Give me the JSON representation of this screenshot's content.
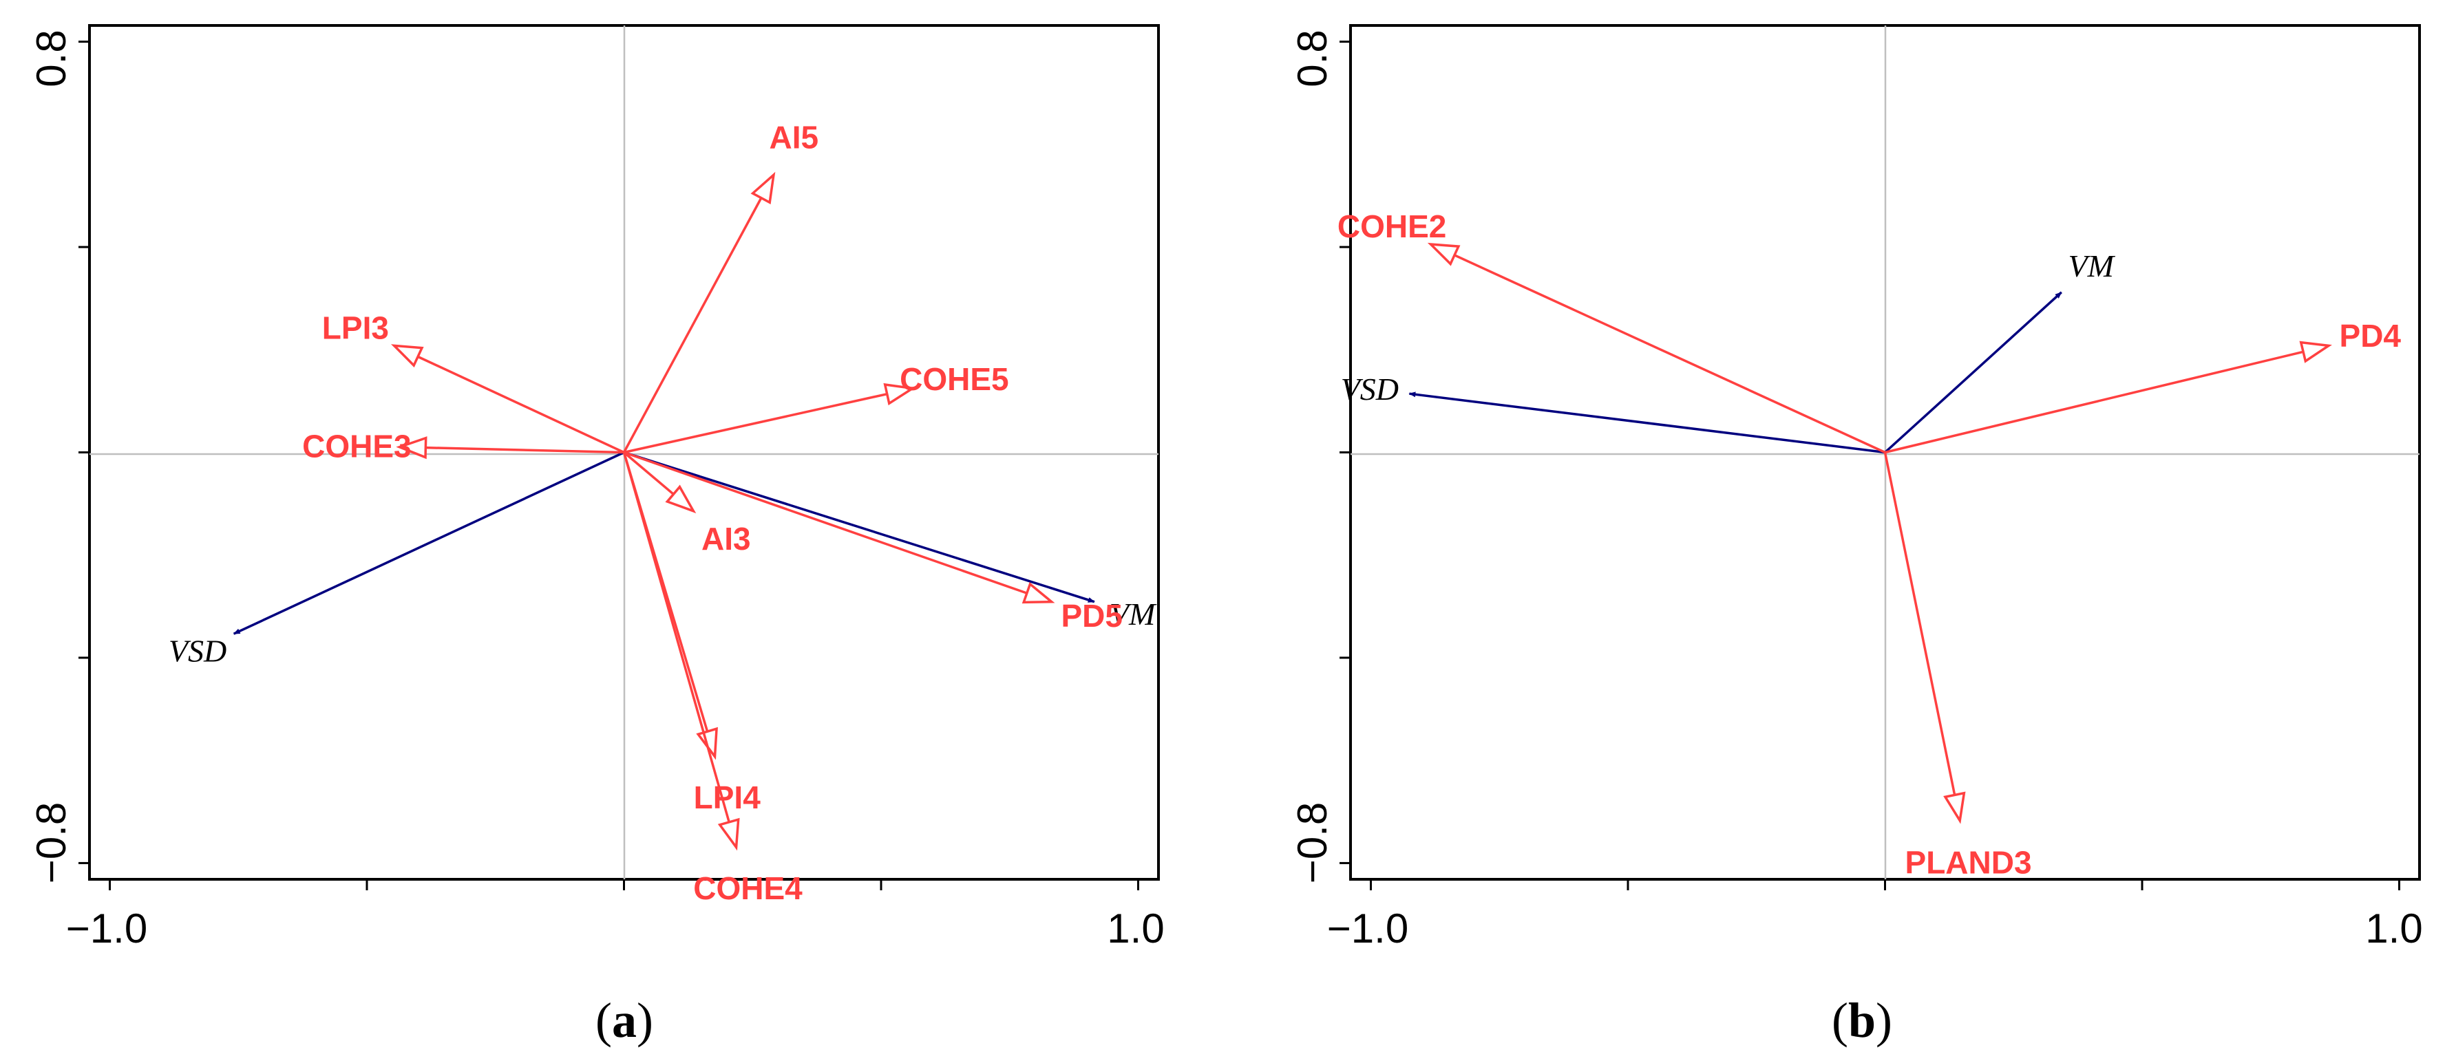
{
  "colors": {
    "response_arrow": "#ff4040",
    "environment_arrow": "#00007f",
    "axis": "#000000",
    "gridline": "#bfbfbf"
  },
  "chart_data": [
    {
      "type": "biplot",
      "panel_label": "a",
      "xlim": [
        -1.0,
        1.0
      ],
      "ylim": [
        -0.8,
        0.8
      ],
      "x_ticks": [
        -1.0,
        1.0
      ],
      "x_tick_labels": [
        "−1.0",
        "1.0"
      ],
      "y_ticks": [
        0.8,
        -0.8
      ],
      "y_tick_labels": [
        "0.8",
        "−0.8"
      ],
      "reference_lines": {
        "x": 0,
        "y": 0
      },
      "environment_vectors": [
        {
          "label": "VM",
          "x": 0.88,
          "y": -0.28
        },
        {
          "label": "VSD",
          "x": -0.73,
          "y": -0.34
        }
      ],
      "response_vectors": [
        {
          "label": "AI5",
          "x": 0.28,
          "y": 0.52
        },
        {
          "label": "LPI3",
          "x": -0.43,
          "y": 0.2
        },
        {
          "label": "COHE5",
          "x": 0.54,
          "y": 0.12
        },
        {
          "label": "COHE3",
          "x": -0.42,
          "y": 0.01
        },
        {
          "label": "AI3",
          "x": 0.13,
          "y": -0.11
        },
        {
          "label": "PD5",
          "x": 0.8,
          "y": -0.28
        },
        {
          "label": "LPI4",
          "x": 0.17,
          "y": -0.57
        },
        {
          "label": "COHE4",
          "x": 0.21,
          "y": -0.74
        }
      ]
    },
    {
      "type": "biplot",
      "panel_label": "b",
      "xlim": [
        -1.0,
        1.0
      ],
      "ylim": [
        -0.8,
        0.8
      ],
      "x_ticks": [
        -1.0,
        1.0
      ],
      "x_tick_labels": [
        "−1.0",
        "1.0"
      ],
      "y_ticks": [
        0.8,
        -0.8
      ],
      "y_tick_labels": [
        "0.8",
        "−0.8"
      ],
      "reference_lines": {
        "x": 0,
        "y": 0
      },
      "environment_vectors": [
        {
          "label": "VM",
          "x": 0.33,
          "y": 0.3
        },
        {
          "label": "VSD",
          "x": -0.89,
          "y": 0.11
        }
      ],
      "response_vectors": [
        {
          "label": "COHE2",
          "x": -0.85,
          "y": 0.39
        },
        {
          "label": "PD4",
          "x": 0.83,
          "y": 0.2
        },
        {
          "label": "PLAND3",
          "x": 0.14,
          "y": -0.69
        }
      ]
    }
  ]
}
